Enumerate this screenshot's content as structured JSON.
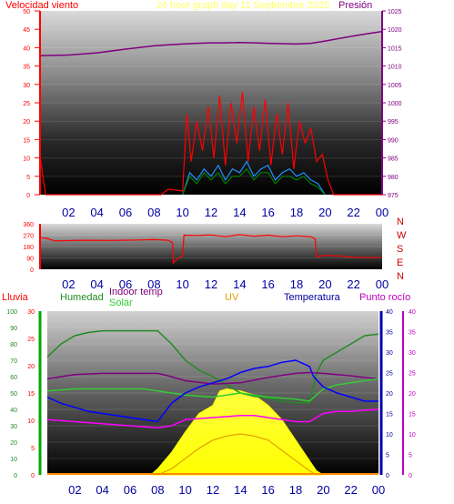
{
  "chart_data": [
    {
      "type": "line",
      "title": "24 hour graph day  11 Septiembre 2025",
      "left_axis_label": "Velocidad viento",
      "right_axis_label": "Presión",
      "x_ticks": [
        "02",
        "04",
        "06",
        "08",
        "10",
        "12",
        "14",
        "16",
        "18",
        "20",
        "22",
        "00"
      ],
      "x_range_hours": [
        0,
        24
      ],
      "left_ylim": [
        0,
        50
      ],
      "left_ticks": [
        "0",
        "5",
        "10",
        "15",
        "20",
        "25",
        "30",
        "35",
        "40",
        "45",
        "50"
      ],
      "right_ylim": [
        975,
        1025
      ],
      "right_ticks": [
        "975",
        "980",
        "985",
        "990",
        "995",
        "1000",
        "1005",
        "1010",
        "1015",
        "1020",
        "1025"
      ],
      "colors": {
        "wind_gust": "#ff0000",
        "wind_speed": "#1e90ff",
        "wind_avg": "#008000",
        "pressure": "#800080"
      },
      "series": [
        {
          "key": "pressure",
          "axis": "right",
          "x": [
            0,
            2,
            4,
            6,
            8,
            9,
            10,
            11,
            12,
            13,
            14,
            15,
            16,
            17,
            18,
            19,
            20,
            21,
            22,
            23,
            24
          ],
          "y": [
            1012.8,
            1013.0,
            1013.6,
            1014.6,
            1015.5,
            1015.8,
            1016.0,
            1016.2,
            1016.3,
            1016.3,
            1016.4,
            1016.3,
            1016.2,
            1016.1,
            1016.0,
            1016.2,
            1016.8,
            1017.5,
            1018.2,
            1018.8,
            1019.4
          ]
        },
        {
          "key": "wind_gust",
          "axis": "left",
          "x": [
            0,
            0.2,
            0.4,
            8.5,
            9.0,
            10.0,
            10.3,
            10.6,
            11.0,
            11.4,
            11.8,
            12.2,
            12.6,
            13.0,
            13.4,
            13.8,
            14.2,
            14.6,
            15.0,
            15.4,
            15.8,
            16.2,
            16.6,
            17.0,
            17.4,
            17.8,
            18.2,
            18.6,
            19.0,
            19.4,
            19.8,
            20.2,
            20.6,
            24
          ],
          "y": [
            11,
            5,
            0,
            0,
            1.5,
            1,
            22,
            9,
            20,
            12,
            24,
            10,
            27,
            8,
            25,
            14,
            28,
            9,
            24,
            12,
            26,
            8,
            22,
            11,
            25,
            7,
            20,
            14,
            18,
            9,
            11,
            4,
            0,
            0
          ]
        },
        {
          "key": "wind_speed",
          "axis": "left",
          "x": [
            10.0,
            10.5,
            11.0,
            11.5,
            12.0,
            12.5,
            13.0,
            13.5,
            14.0,
            14.5,
            15.0,
            15.5,
            16.0,
            16.5,
            17.0,
            17.5,
            18.0,
            18.5,
            19.0,
            19.5,
            20.0
          ],
          "y": [
            0,
            6,
            4,
            7,
            5,
            8,
            4,
            7,
            6,
            9,
            5,
            7,
            8,
            4,
            6,
            7,
            5,
            6,
            4,
            3,
            0
          ]
        },
        {
          "key": "wind_avg",
          "axis": "left",
          "x": [
            10.0,
            10.5,
            11.0,
            11.5,
            12.0,
            12.5,
            13.0,
            13.5,
            14.0,
            14.5,
            15.0,
            15.5,
            16.0,
            16.5,
            17.0,
            17.5,
            18.0,
            18.5,
            19.0,
            19.5,
            20.0
          ],
          "y": [
            0,
            5,
            3,
            6,
            4,
            6,
            3,
            5,
            5,
            7,
            4,
            6,
            6,
            3,
            5,
            5,
            4,
            5,
            3,
            2,
            0
          ]
        }
      ]
    },
    {
      "type": "line",
      "x_ticks": [
        "02",
        "04",
        "06",
        "08",
        "10",
        "12",
        "14",
        "16",
        "18",
        "20",
        "22",
        "00"
      ],
      "x_range_hours": [
        0,
        24
      ],
      "ylim": [
        0,
        360
      ],
      "y_ticks": [
        "0",
        "90",
        "180",
        "270",
        "360"
      ],
      "right_labels": [
        "N",
        "W",
        "S",
        "E",
        "N"
      ],
      "colors": {
        "direction": "#ff0000"
      },
      "series": [
        {
          "key": "direction",
          "x": [
            0,
            0.5,
            1,
            3,
            5,
            7,
            8,
            9,
            9.3,
            9.35,
            9.6,
            9.9,
            10,
            10.1,
            11,
            12,
            13,
            14,
            15,
            16,
            17,
            18,
            19,
            19.3,
            19.4,
            20,
            21,
            22,
            23,
            24
          ],
          "y": [
            250,
            245,
            225,
            230,
            228,
            232,
            235,
            230,
            210,
            50,
            80,
            100,
            110,
            270,
            268,
            272,
            258,
            275,
            262,
            270,
            258,
            265,
            258,
            240,
            100,
            110,
            105,
            95,
            92,
            92
          ]
        }
      ]
    },
    {
      "type": "line",
      "labels": {
        "rain": "Lluvia",
        "humidity": "Humedad",
        "indoor": "Indoor temp",
        "solar": "Solar",
        "uv": "UV",
        "temperature": "Temperatura",
        "dew": "Punto rocío"
      },
      "x_ticks": [
        "02",
        "04",
        "06",
        "08",
        "10",
        "12",
        "14",
        "16",
        "18",
        "20",
        "22",
        "00"
      ],
      "x_range_hours": [
        0,
        24
      ],
      "humidity_ylim": [
        0,
        100
      ],
      "humidity_ticks": [
        "0",
        "10",
        "20",
        "30",
        "40",
        "50",
        "60",
        "70",
        "80",
        "90",
        "100"
      ],
      "rain_ylim": [
        0,
        30
      ],
      "rain_ticks": [
        "0",
        "5",
        "10",
        "15",
        "20",
        "25",
        "30"
      ],
      "temp_ylim": [
        0,
        40
      ],
      "temp_ticks": [
        "0",
        "5",
        "10",
        "15",
        "20",
        "25",
        "30",
        "35",
        "40"
      ],
      "colors": {
        "humidity": "#228b22",
        "indoor": "#800080",
        "solar": "#ffff00",
        "uv": "#e0a000",
        "temperature": "#0000ff",
        "dew": "#ff00ff",
        "solar_tick": "#ff8c00"
      },
      "series": [
        {
          "key": "humidity",
          "axis": "humidity",
          "x": [
            0,
            0.5,
            1,
            2,
            3,
            4,
            5,
            6,
            7,
            8,
            9,
            10,
            11,
            12,
            13,
            14,
            15,
            16,
            17,
            18,
            19,
            19.5,
            20,
            21,
            22,
            23,
            24
          ],
          "y": [
            72,
            76,
            80,
            85,
            87,
            88,
            88,
            88,
            88,
            88,
            80,
            70,
            64,
            60,
            55,
            50,
            48,
            47,
            45,
            44,
            44,
            62,
            70,
            75,
            80,
            85,
            86
          ]
        },
        {
          "key": "indoor",
          "axis": "temp",
          "x": [
            0,
            1,
            2,
            4,
            6,
            8,
            9,
            10,
            12,
            14,
            16,
            18,
            19,
            20,
            21,
            22,
            23,
            24
          ],
          "y": [
            23.5,
            24.0,
            24.5,
            24.8,
            24.8,
            24.8,
            24.0,
            23.0,
            22.2,
            22.5,
            23.8,
            24.8,
            25.0,
            24.8,
            24.5,
            24.2,
            23.8,
            23.5
          ]
        },
        {
          "key": "outdoor_green",
          "axis": "temp",
          "x": [
            0,
            2,
            4,
            6,
            7,
            8,
            9,
            10,
            12,
            13,
            14,
            16,
            18,
            19,
            20,
            21,
            22,
            23,
            24
          ],
          "y": [
            20.5,
            21.0,
            21.0,
            21.0,
            21.0,
            20.5,
            20.0,
            19.5,
            19.0,
            19.5,
            20.0,
            19.0,
            18.5,
            18.0,
            21.0,
            22.0,
            22.5,
            23.0,
            23.5
          ]
        },
        {
          "key": "temperature",
          "axis": "temp",
          "x": [
            0,
            1,
            2,
            3,
            4,
            5,
            6,
            7,
            8,
            9,
            10,
            11,
            12,
            13,
            14,
            15,
            16,
            17,
            18,
            19,
            19.3,
            20,
            21,
            22,
            23,
            24
          ],
          "y": [
            19.0,
            17.5,
            16.5,
            15.5,
            15.0,
            14.5,
            14.0,
            13.5,
            13.0,
            17.5,
            20.0,
            21.5,
            22.5,
            23.5,
            25.0,
            26.0,
            26.5,
            27.5,
            28.0,
            26.5,
            24.0,
            21.5,
            20.0,
            19.0,
            18.0,
            18.0
          ]
        },
        {
          "key": "dew",
          "axis": "temp",
          "x": [
            0,
            2,
            4,
            6,
            8,
            9,
            10,
            12,
            14,
            15,
            16,
            17,
            18,
            19,
            20,
            21,
            22,
            23,
            24
          ],
          "y": [
            13.5,
            13.0,
            12.5,
            12.0,
            11.5,
            12.0,
            13.5,
            14.0,
            14.5,
            14.5,
            14.0,
            13.5,
            13.0,
            13.0,
            15.0,
            15.5,
            15.5,
            15.8,
            16.0
          ]
        },
        {
          "key": "solar",
          "axis": "temp",
          "x": [
            7.5,
            8.0,
            9.0,
            10.0,
            11.0,
            12.0,
            12.5,
            13.0,
            14.0,
            15.0,
            16.0,
            17.0,
            18.0,
            19.0,
            19.5,
            20.0
          ],
          "y": [
            0,
            1.5,
            5.5,
            10.5,
            15.0,
            17.0,
            20.5,
            21.0,
            20.5,
            19.5,
            17.0,
            13.5,
            8.5,
            3.5,
            1.0,
            0
          ]
        },
        {
          "key": "uv",
          "axis": "temp",
          "x": [
            8.0,
            9.0,
            10.0,
            11.0,
            12.0,
            13.0,
            14.0,
            15.0,
            16.0,
            17.0,
            18.0,
            19.0,
            19.5
          ],
          "y": [
            0,
            1.5,
            4.0,
            6.5,
            8.5,
            9.5,
            10.0,
            9.5,
            8.5,
            6.0,
            3.5,
            1.0,
            0
          ]
        }
      ]
    }
  ]
}
